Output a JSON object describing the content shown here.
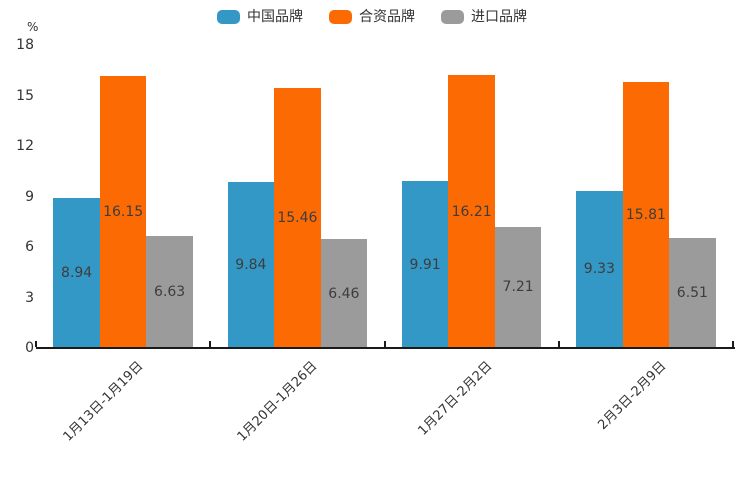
{
  "chart_data": {
    "type": "bar",
    "title": "",
    "xlabel": "",
    "ylabel": "%",
    "categories": [
      "1月13日-1月19日",
      "1月20日-1月26日",
      "1月27日-2月2日",
      "2月3日-2月9日"
    ],
    "series": [
      {
        "name": "中国品牌",
        "color": "#3498c7",
        "values": [
          8.94,
          9.84,
          9.91,
          9.33
        ]
      },
      {
        "name": "合资品牌",
        "color": "#fc6b03",
        "values": [
          16.15,
          15.46,
          16.21,
          15.81
        ]
      },
      {
        "name": "进口品牌",
        "color": "#9b9b9b",
        "values": [
          6.63,
          6.46,
          7.21,
          6.51
        ]
      }
    ],
    "ylim": [
      0,
      18
    ],
    "yticks": [
      0,
      3,
      6,
      9,
      12,
      15,
      18
    ],
    "legend_position": "top-center",
    "grid": false,
    "bar_labels": true,
    "bar_label_format": "2-decimals",
    "x_label_rotation_deg": 45,
    "colors": {
      "axis_line": "#1a1a1a",
      "tick_text": "#333333",
      "bar_label_text": "#3d3d3d"
    }
  }
}
